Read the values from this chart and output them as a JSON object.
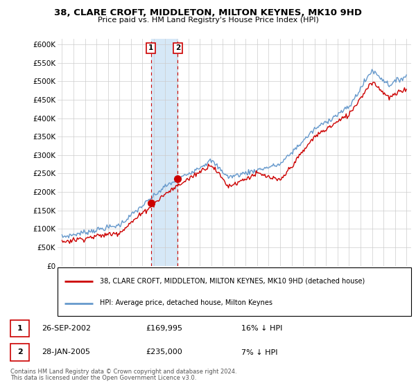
{
  "title": "38, CLARE CROFT, MIDDLETON, MILTON KEYNES, MK10 9HD",
  "subtitle": "Price paid vs. HM Land Registry's House Price Index (HPI)",
  "ylabel_ticks": [
    "£0",
    "£50K",
    "£100K",
    "£150K",
    "£200K",
    "£250K",
    "£300K",
    "£350K",
    "£400K",
    "£450K",
    "£500K",
    "£550K",
    "£600K"
  ],
  "ytick_vals": [
    0,
    50000,
    100000,
    150000,
    200000,
    250000,
    300000,
    350000,
    400000,
    450000,
    500000,
    550000,
    600000
  ],
  "ylim": [
    0,
    615000
  ],
  "sale1_date_str": "26-SEP-2002",
  "sale1_price": 169995,
  "sale1_pct": "16% ↓ HPI",
  "sale1_x": 2002.74,
  "sale2_date_str": "28-JAN-2005",
  "sale2_price": 235000,
  "sale2_pct": "7% ↓ HPI",
  "sale2_x": 2005.08,
  "legend_line1": "38, CLARE CROFT, MIDDLETON, MILTON KEYNES, MK10 9HD (detached house)",
  "legend_line2": "HPI: Average price, detached house, Milton Keynes",
  "footer1": "Contains HM Land Registry data © Crown copyright and database right 2024.",
  "footer2": "This data is licensed under the Open Government Licence v3.0.",
  "red_color": "#cc0000",
  "blue_color": "#6699cc",
  "shade_color": "#d6e8f7",
  "background_color": "#ffffff",
  "xlim_left": 1994.6,
  "xlim_right": 2025.4
}
